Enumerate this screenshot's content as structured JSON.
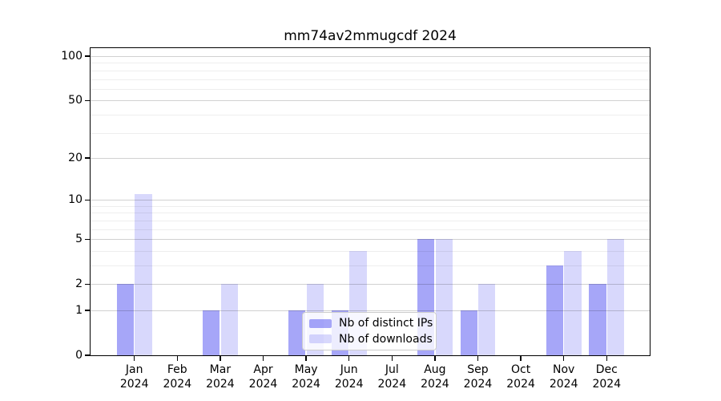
{
  "figure": {
    "title": "mm74av2mmugcdf 2024",
    "background": "#ffffff"
  },
  "chart_data": {
    "type": "bar",
    "title": "mm74av2mmugcdf 2024",
    "categories": [
      "Jan 2024",
      "Feb 2024",
      "Mar 2024",
      "Apr 2024",
      "May 2024",
      "Jun 2024",
      "Jul 2024",
      "Aug 2024",
      "Sep 2024",
      "Oct 2024",
      "Nov 2024",
      "Dec 2024"
    ],
    "x_months": [
      "Jan",
      "Feb",
      "Mar",
      "Apr",
      "May",
      "Jun",
      "Jul",
      "Aug",
      "Sep",
      "Oct",
      "Nov",
      "Dec"
    ],
    "x_year": "2024",
    "series": [
      {
        "name": "Nb of distinct IPs",
        "values": [
          2,
          0,
          1,
          0,
          1,
          1,
          0,
          5,
          1,
          0,
          3,
          2
        ],
        "color": "rgba(92,92,242,0.55)"
      },
      {
        "name": "Nb of downloads",
        "values": [
          11,
          0,
          2,
          0,
          2,
          4,
          0,
          5,
          2,
          0,
          4,
          5
        ],
        "color": "rgba(92,92,242,0.24)"
      }
    ],
    "xlabel": "",
    "ylabel": "",
    "yscale": "log1p",
    "ylim": [
      0,
      113
    ],
    "y_major_ticks": [
      0,
      1,
      2,
      5,
      10,
      20,
      50,
      100
    ],
    "y_tick_labels": [
      "0",
      "1",
      "2",
      "5",
      "10",
      "20",
      "50",
      "100"
    ],
    "y_minor_gridlines": [
      3,
      4,
      6,
      7,
      8,
      9,
      30,
      40,
      60,
      70,
      80,
      90
    ],
    "grid": "on",
    "legend_position": "lower-center"
  },
  "colors": {
    "grid_major": "rgba(0,0,0,0.18)",
    "grid_minor": "rgba(0,0,0,0.065)",
    "axis": "#000000",
    "text": "#000000",
    "legend_bg": "rgba(255,255,255,0.8)",
    "legend_border": "#cccccc"
  }
}
